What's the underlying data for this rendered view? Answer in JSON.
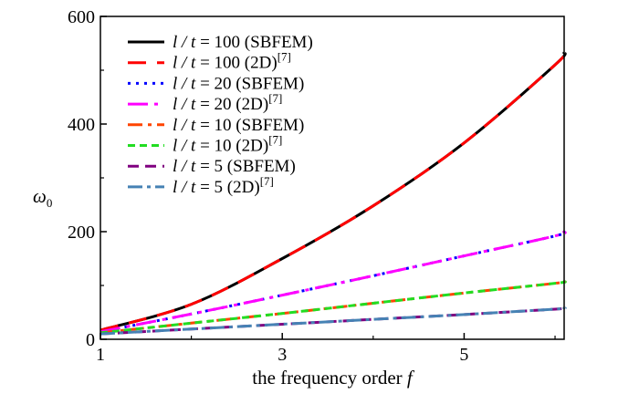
{
  "chart_data": {
    "type": "line",
    "xlabel_main": "the frequency order",
    "xlabel_var": "f",
    "ylabel_symbol": "ω",
    "ylabel_sub": "0",
    "xlim": [
      1,
      6.1
    ],
    "ylim": [
      0,
      600
    ],
    "x_ticks": [
      1,
      3,
      5
    ],
    "y_ticks": [
      0,
      200,
      400,
      600
    ],
    "grid": false,
    "legend_position": "top-left",
    "x": [
      1,
      2,
      3,
      4,
      5,
      6,
      6.1
    ],
    "series": [
      {
        "name_lt": "l / t",
        "name_val": "= 100",
        "name_method": "(SBFEM)",
        "name_ref": "",
        "color": "#000000",
        "dash": "",
        "width": 3,
        "values": [
          17,
          65,
          150,
          248,
          365,
          510,
          533
        ]
      },
      {
        "name_lt": "l / t",
        "name_val": "= 100",
        "name_method": "(2D)",
        "name_ref": "[7]",
        "color": "#ff0000",
        "dash": "20,12",
        "width": 3,
        "values": [
          17,
          65,
          150,
          248,
          365,
          510,
          533
        ]
      },
      {
        "name_lt": "l / t",
        "name_val": "= 20",
        "name_method": "(SBFEM)",
        "name_ref": "",
        "color": "#0000ff",
        "dash": "3,6",
        "width": 3,
        "values": [
          14,
          47,
          82,
          118,
          155,
          192,
          200
        ]
      },
      {
        "name_lt": "l / t",
        "name_val": "= 20",
        "name_method": "(2D)",
        "name_ref": "[7]",
        "color": "#ff00ff",
        "dash": "22,7,4,7",
        "width": 3,
        "values": [
          14,
          47,
          82,
          118,
          155,
          192,
          200
        ]
      },
      {
        "name_lt": "l / t",
        "name_val": "= 10",
        "name_method": "(SBFEM)",
        "name_ref": "",
        "color": "#ff4500",
        "dash": "16,6,4,6",
        "width": 3,
        "values": [
          12,
          30,
          48,
          67,
          86,
          104,
          107
        ]
      },
      {
        "name_lt": "l / t",
        "name_val": "= 10",
        "name_method": "(2D)",
        "name_ref": "[7]",
        "color": "#22dd22",
        "dash": "8,5",
        "width": 3,
        "values": [
          12,
          30,
          48,
          67,
          86,
          104,
          107
        ]
      },
      {
        "name_lt": "l / t",
        "name_val": "= 5",
        "name_method": "(SBFEM)",
        "name_ref": "",
        "color": "#800080",
        "dash": "12,7",
        "width": 3,
        "values": [
          10,
          19,
          28,
          37,
          46,
          56,
          58
        ]
      },
      {
        "name_lt": "l / t",
        "name_val": "= 5",
        "name_method": "(2D)",
        "name_ref": "[7]",
        "color": "#4682b4",
        "dash": "16,5,4,5",
        "width": 3,
        "values": [
          10,
          19,
          28,
          37,
          46,
          56,
          58
        ]
      }
    ]
  }
}
